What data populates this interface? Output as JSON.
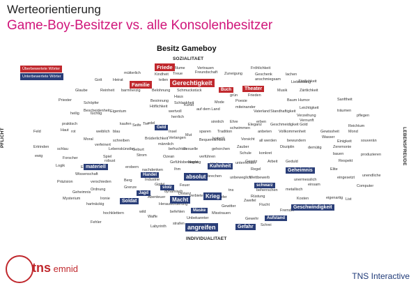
{
  "title": "Werteorientierung",
  "subtitle": "Game-Boy-Besitzer vs. alle Konsolenbesitzer",
  "chart_title": "Besitz Gameboy",
  "axes": {
    "top": "SOZIALITAET",
    "bottom": "INDIVIDUALITAET",
    "left": "PFLICHT",
    "right": "LEBENSFREUDE"
  },
  "legend": {
    "over": "Überbewertete Wörter",
    "under": "Unterbewertete Wörter"
  },
  "colors": {
    "over": "#c0282d",
    "under": "#2a3e78",
    "subtitle": "#d0157a",
    "footer": "#1f3a78"
  },
  "logo": {
    "tns": "tns",
    "emnid": "emnid"
  },
  "footer": "TNS Interactive",
  "words": [
    {
      "t": "Blume"
    },
    {
      "t": "Vertrauen"
    },
    {
      "t": "Fröhlichkeit"
    },
    {
      "t": "mütterlich"
    },
    {
      "t": "Kindheit"
    },
    {
      "t": "Treue"
    },
    {
      "t": "Freundschaft"
    },
    {
      "t": "Zuneigung"
    },
    {
      "t": "Geschenk"
    },
    {
      "t": "lachen"
    },
    {
      "t": "Gott"
    },
    {
      "t": "Heirat"
    },
    {
      "t": "teilen"
    },
    {
      "t": "Zärtlichkeit"
    },
    {
      "t": "anschmiegsam"
    },
    {
      "t": "Liebkosung"
    },
    {
      "t": "Glaube"
    },
    {
      "t": "Reinheit"
    },
    {
      "t": "barmherzig"
    },
    {
      "t": "Belohnung"
    },
    {
      "t": "Schmuckstück"
    },
    {
      "t": "Musik"
    },
    {
      "t": "Zärtlichkeit"
    },
    {
      "t": "Priester"
    },
    {
      "t": "Haus"
    },
    {
      "t": "grün"
    },
    {
      "t": "Frieden"
    },
    {
      "t": "Schöpfer"
    },
    {
      "t": "Bescheidenheit"
    },
    {
      "t": "Besinnung"
    },
    {
      "t": "Schlankheit"
    },
    {
      "t": "Mode"
    },
    {
      "t": "Poesie"
    },
    {
      "t": "Baum"
    },
    {
      "t": "Humor"
    },
    {
      "t": "Sanftheit"
    },
    {
      "t": "Höflichkeit"
    },
    {
      "t": "Kunst"
    },
    {
      "t": "Leichtigkeit"
    },
    {
      "t": "träumen"
    },
    {
      "t": "heilig"
    },
    {
      "t": "tüchtig"
    },
    {
      "t": "Eigentum"
    },
    {
      "t": "wertvoll"
    },
    {
      "t": "auf dem Land"
    },
    {
      "t": "miteinander"
    },
    {
      "t": "Vaterland"
    },
    {
      "t": "Standhaftigkeit"
    },
    {
      "t": "Verzeihung"
    },
    {
      "t": "pflegen"
    },
    {
      "t": "praktisch"
    },
    {
      "t": "herrlich"
    },
    {
      "t": "kaufen"
    },
    {
      "t": "Tier"
    },
    {
      "t": "sinnlich"
    },
    {
      "t": "Ehre"
    },
    {
      "t": "erben"
    },
    {
      "t": "Vernunft"
    },
    {
      "t": "edel"
    },
    {
      "t": "Seife"
    },
    {
      "t": "schwimmen"
    },
    {
      "t": "Eleganz"
    },
    {
      "t": "Geschmeidigkeit"
    },
    {
      "t": "Gold"
    },
    {
      "t": "Reichtum"
    },
    {
      "t": "Haut"
    },
    {
      "t": "rot"
    },
    {
      "t": "weiblich"
    },
    {
      "t": "blau"
    },
    {
      "t": "Insel"
    },
    {
      "t": "sparen"
    },
    {
      "t": "Tradition"
    },
    {
      "t": "anbeten"
    },
    {
      "t": "Vollkommenheit"
    },
    {
      "t": "Gewissheit"
    },
    {
      "t": "Feld"
    },
    {
      "t": "Mut"
    },
    {
      "t": "Bequemlichkeit"
    },
    {
      "t": "Wasser"
    },
    {
      "t": "Mond"
    },
    {
      "t": "Moral"
    },
    {
      "t": "schreiben"
    },
    {
      "t": "Brüderlichkeit"
    },
    {
      "t": "Verlangen"
    },
    {
      "t": "lustvoll"
    },
    {
      "t": "Vorsicht"
    },
    {
      "t": "all werden"
    },
    {
      "t": "bewundern"
    },
    {
      "t": "Einigkeit"
    },
    {
      "t": "souverän"
    },
    {
      "t": "Ertrinden"
    },
    {
      "t": "schlau"
    },
    {
      "t": "verfeinert"
    },
    {
      "t": "männlich"
    },
    {
      "t": "Zauber"
    },
    {
      "t": "Disziplin"
    },
    {
      "t": "demütig"
    },
    {
      "t": "Zeremonie"
    },
    {
      "t": "ewig"
    },
    {
      "t": "Lebenskünstler"
    },
    {
      "t": "Geburt"
    },
    {
      "t": "befruchten"
    },
    {
      "t": "Sexuelle"
    },
    {
      "t": "gehorchen"
    },
    {
      "t": "Schule"
    },
    {
      "t": "konkret"
    },
    {
      "t": "bauen"
    },
    {
      "t": "produzieren"
    },
    {
      "t": "Forscher"
    },
    {
      "t": "Spiel"
    },
    {
      "t": "Strom"
    },
    {
      "t": "Ozean"
    },
    {
      "t": "verführen"
    },
    {
      "t": "Gesetz"
    },
    {
      "t": "Arbeit"
    },
    {
      "t": "Geduld"
    },
    {
      "t": "Respekt"
    },
    {
      "t": "Logik"
    },
    {
      "t": "robust"
    },
    {
      "t": "Gefühlsbewegung"
    },
    {
      "t": "Nacht"
    },
    {
      "t": "Mäßigung"
    },
    {
      "t": "unterrichten"
    },
    {
      "t": "Erfasser"
    },
    {
      "t": "erobern"
    },
    {
      "t": "nachdenken"
    },
    {
      "t": "Ihm"
    },
    {
      "t": "Regel"
    },
    {
      "t": "Elite"
    },
    {
      "t": "Wissenschaft"
    },
    {
      "t": "Präzision"
    },
    {
      "t": "verschieden"
    },
    {
      "t": "Berg"
    },
    {
      "t": "Industrie"
    },
    {
      "t": "abbrechen"
    },
    {
      "t": "unbeweglich"
    },
    {
      "t": "Wettbewerb"
    },
    {
      "t": "eingesetzt"
    },
    {
      "t": "unendliche"
    },
    {
      "t": "unermesslich"
    },
    {
      "t": "Gipfel"
    },
    {
      "t": "Feuer"
    },
    {
      "t": "Ordnung"
    },
    {
      "t": "Grenze"
    },
    {
      "t": "einsam"
    },
    {
      "t": "Geheimnis"
    },
    {
      "t": "dynamisch"
    },
    {
      "t": "Distanz"
    },
    {
      "t": "tns"
    },
    {
      "t": "beherrschen"
    },
    {
      "t": "metallisch"
    },
    {
      "t": "Computer"
    },
    {
      "t": "Mysterium"
    },
    {
      "t": "Ironie"
    },
    {
      "t": "Abenteuer"
    },
    {
      "t": "verbieten"
    },
    {
      "t": "Opfer"
    },
    {
      "t": "Rüstung"
    },
    {
      "t": "Kosten"
    },
    {
      "t": "eigenartig"
    },
    {
      "t": "hartnäckig"
    },
    {
      "t": "Herausforderung"
    },
    {
      "t": "Gewitter"
    },
    {
      "t": "Zweifel"
    },
    {
      "t": "Flucht"
    },
    {
      "t": "Fremder"
    },
    {
      "t": "List"
    },
    {
      "t": "hochklettern"
    },
    {
      "t": "wild"
    },
    {
      "t": "befehlen"
    },
    {
      "t": "Misstrauen"
    },
    {
      "t": "Waffe"
    },
    {
      "t": "Unbekannter"
    },
    {
      "t": "Gewehr"
    },
    {
      "t": "Fehler"
    },
    {
      "t": "Labyrinth"
    },
    {
      "t": "strafen"
    },
    {
      "t": "Schrei"
    },
    {
      "t": "Angst"
    },
    {
      "t": "Öffnen"
    }
  ],
  "over_words": [
    "Friede",
    "Familie",
    "Gerechtigkeit",
    "Buch",
    "Theater"
  ],
  "under_words": [
    "Geld",
    "materiell",
    "Kuhnheit",
    "Geheimnis",
    "Handel",
    "absolut",
    "schwarz",
    "Jagd",
    "stolz",
    "Krieg",
    "Soldat",
    "Macht",
    "Geschwindigkeit",
    "Maske",
    "Aufstand",
    "angreifen",
    "Gefahr"
  ]
}
